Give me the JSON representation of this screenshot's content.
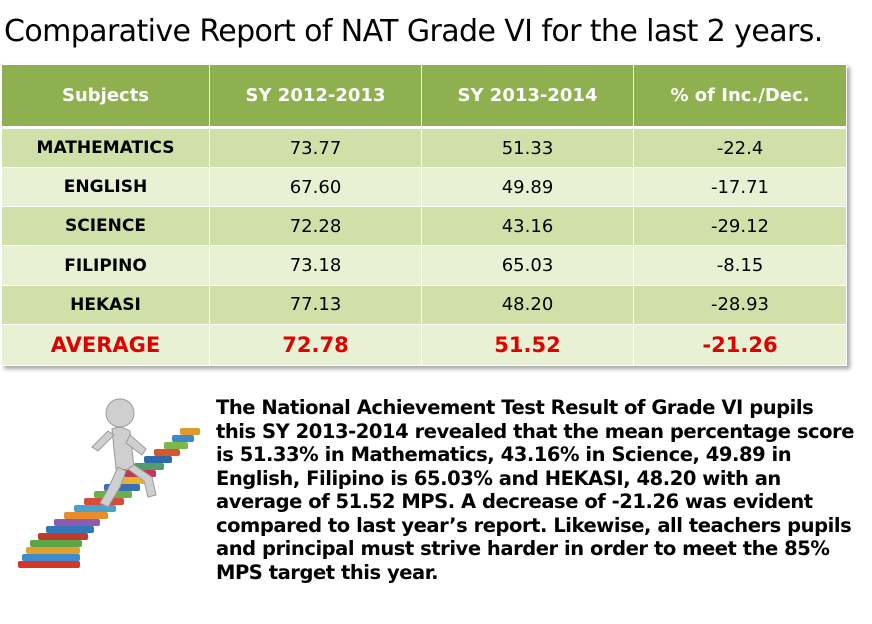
{
  "title": "Comparative Report of NAT Grade VI for the last 2 years.",
  "table": {
    "headers": [
      "Subjects",
      "SY 2012-2013",
      "SY 2013-2014",
      "% of Inc./Dec."
    ],
    "rows": [
      {
        "subject": "MATHEMATICS",
        "sy2012_2013": "73.77",
        "sy2013_2014": "51.33",
        "change": "-22.4"
      },
      {
        "subject": "ENGLISH",
        "sy2012_2013": "67.60",
        "sy2013_2014": "49.89",
        "change": "-17.71"
      },
      {
        "subject": "SCIENCE",
        "sy2012_2013": "72.28",
        "sy2013_2014": "43.16",
        "change": "-29.12"
      },
      {
        "subject": "FILIPINO",
        "sy2012_2013": "73.18",
        "sy2013_2014": "65.03",
        "change": "-8.15"
      },
      {
        "subject": "HEKASI",
        "sy2012_2013": "77.13",
        "sy2013_2014": "48.20",
        "change": "-28.93"
      }
    ],
    "average": {
      "subject": "AVERAGE",
      "sy2012_2013": "72.78",
      "sy2013_2014": "51.52",
      "change": "-21.26"
    }
  },
  "illustration": {
    "icon": "figure-climbing-book-stairs-icon"
  },
  "paragraph": "The National Achievement Test Result of Grade VI pupils this SY 2013-2014 revealed that the mean percentage score is 51.33% in Mathematics, 43.16% in Science, 49.89 in English, Filipino is 65.03% and HEKASI, 48.20 with an average of 51.52 MPS. A decrease of -21.26 was evident compared to last year’s report. Likewise, all teachers pupils and principal must strive harder in order to meet the 85% MPS target this year.",
  "colors": {
    "header_bg": "#8fb04e",
    "row_dark": "#cfe0a9",
    "row_light": "#e8f1d3",
    "average_text": "#e00000"
  }
}
